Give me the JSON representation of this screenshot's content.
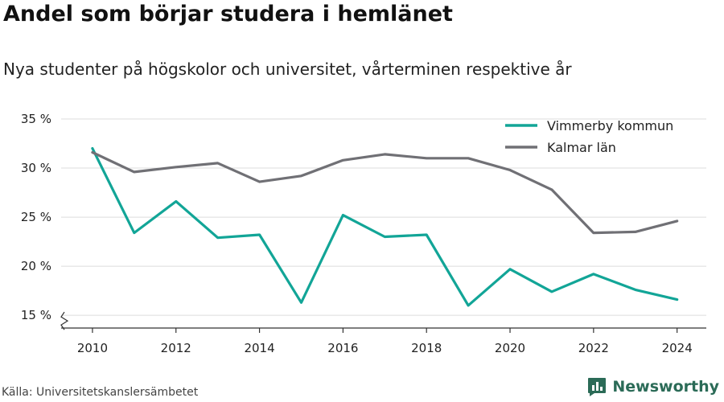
{
  "header": {
    "title": "Andel som börjar studera i hemlänet",
    "subtitle": "Nya studenter på högskolor och universitet, vårterminen respektive år"
  },
  "footer": {
    "source": "Källa: Universitetskanslersämbetet",
    "brand": "Newsworthy",
    "brand_color": "#2b6b57"
  },
  "chart_data": {
    "type": "line",
    "title": "Andel som börjar studera i hemlänet",
    "subtitle": "Nya studenter på högskolor och universitet, vårterminen respektive år",
    "x": [
      2010,
      2011,
      2012,
      2013,
      2014,
      2015,
      2016,
      2017,
      2018,
      2019,
      2020,
      2021,
      2022,
      2023,
      2024
    ],
    "x_ticks": [
      2010,
      2012,
      2014,
      2016,
      2018,
      2020,
      2022,
      2024
    ],
    "y_ticks": [
      15,
      20,
      25,
      30,
      35
    ],
    "y_tick_labels": [
      "15 %",
      "20 %",
      "25 %",
      "30 %",
      "35 %"
    ],
    "xlim": [
      2009.25,
      2024.7
    ],
    "ylim": [
      13.7,
      35
    ],
    "y_axis_break": true,
    "grid": "horizontal",
    "legend_position": "top-right",
    "series": [
      {
        "name": "Vimmerby kommun",
        "color": "#12a597",
        "values": [
          32.0,
          23.4,
          26.6,
          22.9,
          23.2,
          16.3,
          25.2,
          23.0,
          23.2,
          16.0,
          19.7,
          17.4,
          19.2,
          17.6,
          16.6
        ]
      },
      {
        "name": "Kalmar län",
        "color": "#707075",
        "values": [
          31.6,
          29.6,
          30.1,
          30.5,
          28.6,
          29.2,
          30.8,
          31.4,
          31.0,
          31.0,
          29.8,
          27.8,
          23.4,
          23.5,
          24.6
        ]
      }
    ]
  }
}
